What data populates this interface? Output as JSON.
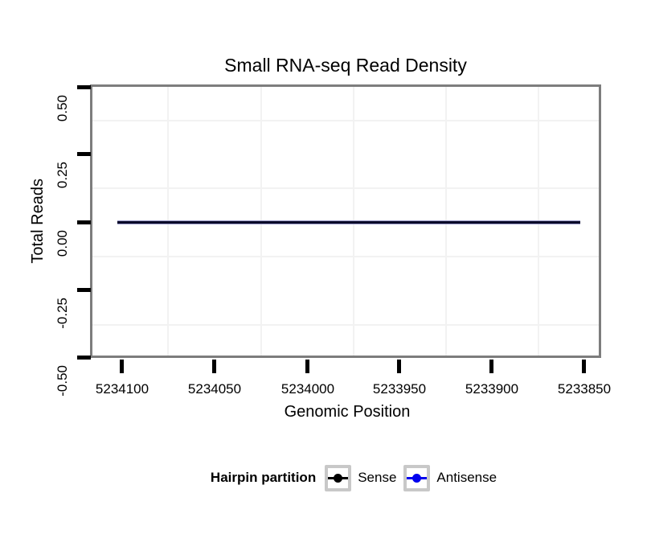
{
  "title": "Small RNA-seq Read Density",
  "axes": {
    "x": {
      "title": "Genomic Position",
      "tick_labels": [
        "5234100",
        "5234050",
        "5234000",
        "5233950",
        "5233900",
        "5233850"
      ]
    },
    "y": {
      "title": "Total Reads",
      "tick_labels": [
        "0.50",
        "0.25",
        "0.00",
        "-0.25",
        "-0.50"
      ]
    }
  },
  "legend": {
    "title": "Hairpin partition",
    "entries": [
      {
        "label": "Sense",
        "color": "#000000"
      },
      {
        "label": "Antisense",
        "color": "#0000ee"
      }
    ]
  },
  "colors": {
    "panel_border": "#7d7d7d",
    "minor_gridline": "#f2f2f2",
    "series_line_core": "#0b0b2a",
    "series_line_fringe": "#9a9ac8",
    "tick": "#000000",
    "legend_key_border": "#c8c8c8",
    "text": "#000000"
  },
  "chart_data": {
    "type": "line",
    "title": "Small RNA-seq Read Density",
    "xlabel": "Genomic Position",
    "ylabel": "Total Reads",
    "x_ticks": [
      5234100,
      5234050,
      5234000,
      5233950,
      5233900,
      5233850
    ],
    "x_axis_reversed": true,
    "x_range": [
      5234103,
      5233852
    ],
    "ylim": [
      -0.5,
      0.5
    ],
    "y_ticks": [
      0.5,
      0.25,
      0.0,
      -0.25,
      -0.5
    ],
    "grid": "minor gridlines only, very light gray; white panel background",
    "legend_position": "bottom",
    "legend_title": "Hairpin partition",
    "series": [
      {
        "name": "Sense",
        "color": "#000000",
        "x": [
          5234103,
          5233852
        ],
        "y": [
          0,
          0
        ]
      },
      {
        "name": "Antisense",
        "color": "#0000ee",
        "x": [
          5234103,
          5233852
        ],
        "y": [
          0,
          0
        ]
      }
    ]
  }
}
